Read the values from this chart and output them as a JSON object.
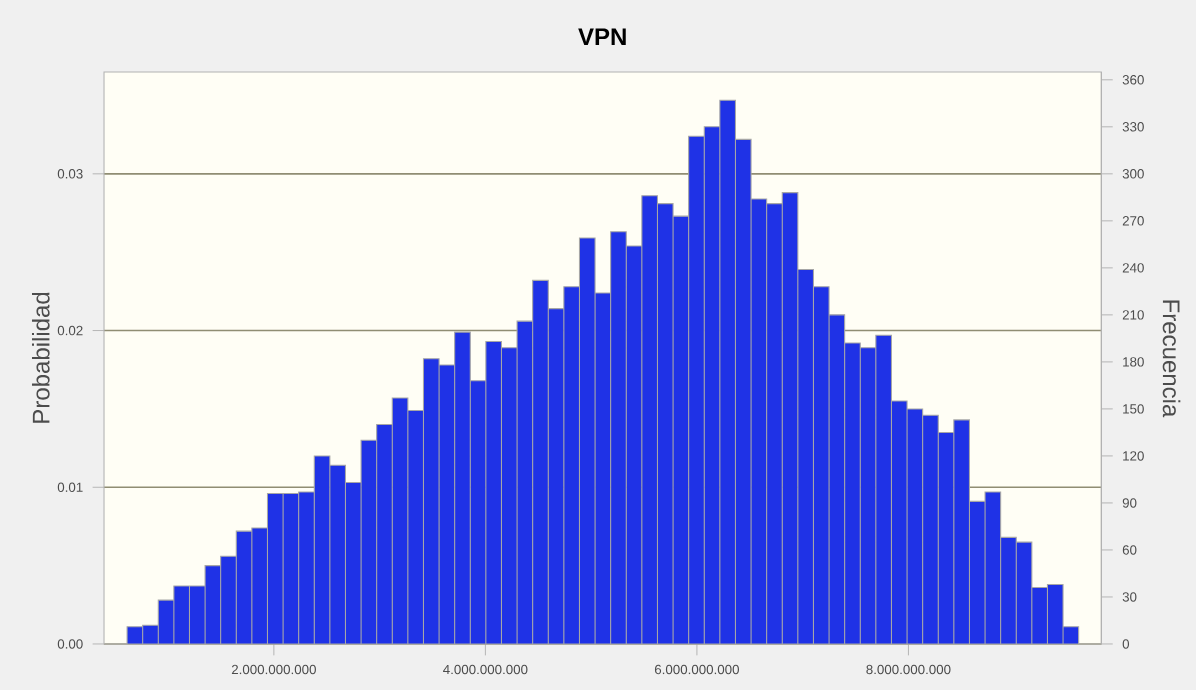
{
  "chart_data": {
    "type": "histogram",
    "title": "VPN",
    "ylabel": "Probabilidad",
    "y2label": "Frecuencia",
    "bins": [
      612000000,
      759500000,
      907000000,
      1054500000,
      1202000000,
      1349500000,
      1497000000,
      1644500000,
      1792000000,
      1939500000,
      2087000000,
      2234500000,
      2382000000,
      2529500000,
      2677000000,
      2824500000,
      2972000000,
      3119500000,
      3267000000,
      3414500000,
      3562000000,
      3709500000,
      3857000000,
      4004500000,
      4152000000,
      4299500000,
      4447000000,
      4594500000,
      4742000000,
      4889500000,
      5037000000,
      5184500000,
      5332000000,
      5479500000,
      5627000000,
      5774500000,
      5922000000,
      6069500000,
      6217000000,
      6364500000,
      6512000000,
      6659500000,
      6807000000,
      6954500000,
      7102000000,
      7249500000,
      7397000000,
      7544500000,
      7692000000,
      7839500000,
      7987000000,
      8134500000,
      8282000000,
      8429500000,
      8577000000,
      8724500000,
      8872000000,
      9019500000,
      9167000000,
      9314500000,
      9462000000,
      9609500000
    ],
    "values": [
      0.0011,
      0.0012,
      0.0028,
      0.0037,
      0.0037,
      0.005,
      0.0056,
      0.0072,
      0.0074,
      0.0096,
      0.0096,
      0.0097,
      0.012,
      0.0114,
      0.0103,
      0.013,
      0.014,
      0.0157,
      0.0149,
      0.0182,
      0.0178,
      0.0199,
      0.0168,
      0.0193,
      0.0189,
      0.0206,
      0.0232,
      0.0214,
      0.0228,
      0.0259,
      0.0224,
      0.0263,
      0.0254,
      0.0286,
      0.0281,
      0.0273,
      0.0324,
      0.033,
      0.0347,
      0.0322,
      0.0284,
      0.0281,
      0.0288,
      0.0239,
      0.0228,
      0.021,
      0.0192,
      0.0189,
      0.0197,
      0.0155,
      0.015,
      0.0146,
      0.0135,
      0.0143,
      0.0091,
      0.0097,
      0.0068,
      0.0065,
      0.0036,
      0.0038,
      0.0011
    ],
    "color": "#1f32e6",
    "xlim": [
      394000000,
      9824000000
    ],
    "xticks": [
      {
        "value": 2000000000,
        "label": "2.000.000.000"
      },
      {
        "value": 4000000000,
        "label": "4.000.000.000"
      },
      {
        "value": 6000000000,
        "label": "6.000.000.000"
      },
      {
        "value": 8000000000,
        "label": "8.000.000.000"
      }
    ],
    "ylim": [
      0,
      0.0365
    ],
    "yticks": [
      {
        "value": 0,
        "label": "0.00"
      },
      0.01,
      0.02,
      0.03
    ],
    "y2lim": [
      0,
      365
    ],
    "y2ticks": [
      0,
      30,
      60,
      90,
      120,
      150,
      180,
      210,
      240,
      270,
      300,
      330,
      360
    ],
    "grid": "y"
  }
}
